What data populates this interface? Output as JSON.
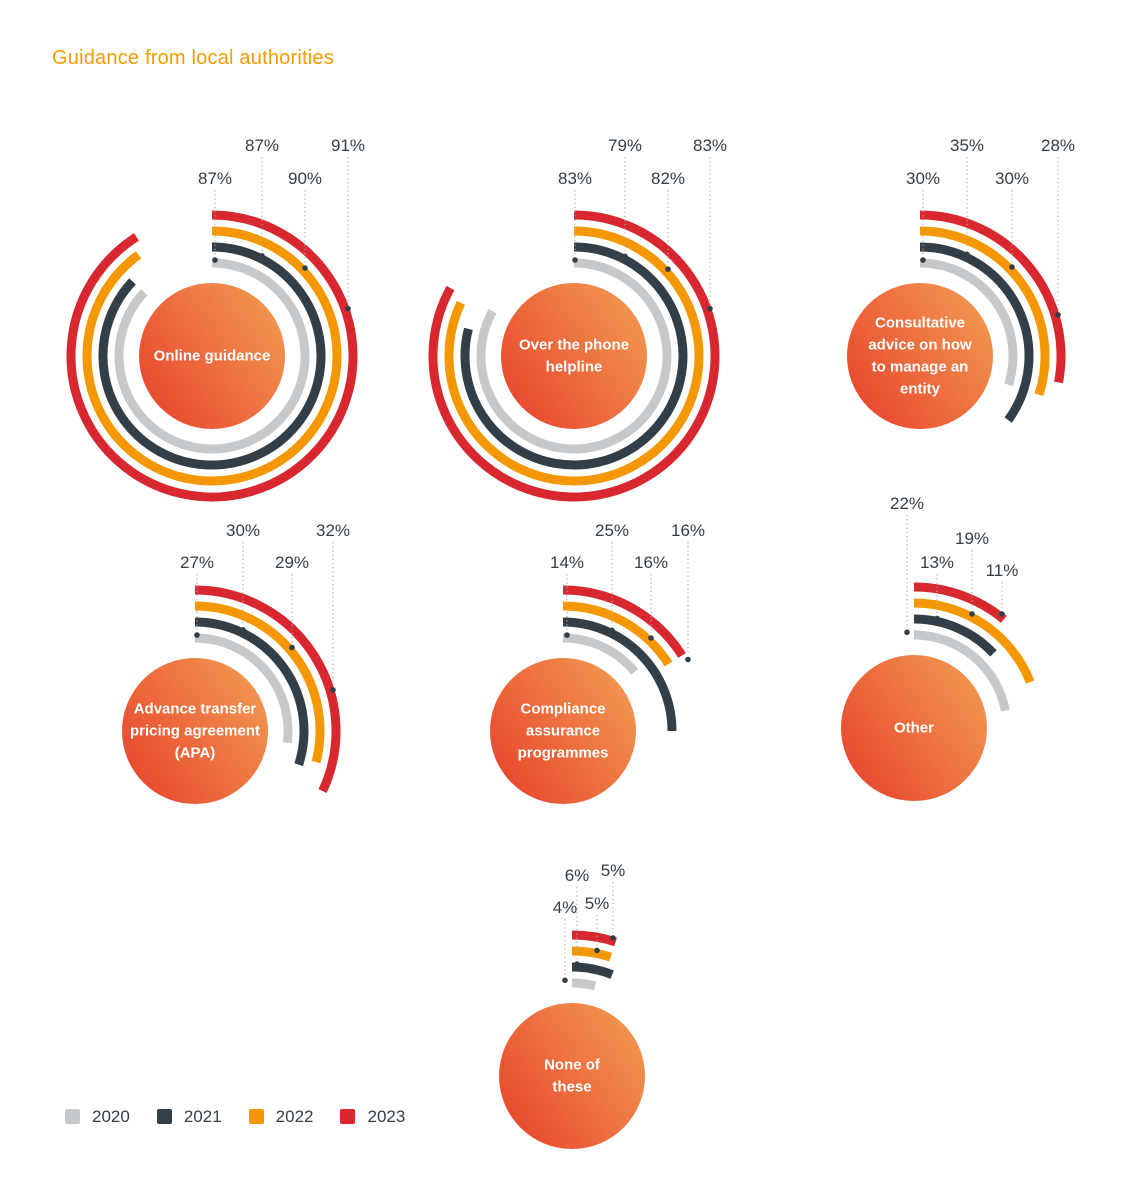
{
  "title": "Guidance from local authorities",
  "title_color": "#F59B00",
  "legend": {
    "items": [
      {
        "label": "2020",
        "color": "#C6C9CC"
      },
      {
        "label": "2021",
        "color": "#333F48"
      },
      {
        "label": "2022",
        "color": "#F49700"
      },
      {
        "label": "2023",
        "color": "#D9272F"
      }
    ]
  },
  "chart_data": {
    "type": "radial-bar",
    "title": "Guidance from local authorities",
    "unit": "%",
    "value_range": [
      0,
      100
    ],
    "start_angle_deg": 0,
    "sweep_direction": "clockwise",
    "ring_order_inner_to_outer": [
      "2020",
      "2021",
      "2022",
      "2023"
    ],
    "years": [
      "2020",
      "2021",
      "2022",
      "2023"
    ],
    "year_colors": {
      "2020": "#C6C9CC",
      "2021": "#333F48",
      "2022": "#F49700",
      "2023": "#D9272F"
    },
    "categories": [
      {
        "label": "Online guidance",
        "label_lines": [
          "Online guidance"
        ],
        "values": [
          87,
          87,
          90,
          91
        ]
      },
      {
        "label": "Over the phone helpline",
        "label_lines": [
          "Over the phone",
          "helpline"
        ],
        "values": [
          83,
          79,
          82,
          83
        ]
      },
      {
        "label": "Consultative advice on how to manage an entity",
        "label_lines": [
          "Consultative",
          "advice on how",
          "to manage an",
          "entity"
        ],
        "values": [
          30,
          35,
          30,
          28
        ]
      },
      {
        "label": "Advance transfer pricing agreement (APA)",
        "label_lines": [
          "Advance transfer",
          "pricing agreement",
          "(APA)"
        ],
        "values": [
          27,
          30,
          29,
          32
        ]
      },
      {
        "label": "Compliance assurance programmes",
        "label_lines": [
          "Compliance",
          "assurance",
          "programmes"
        ],
        "values": [
          14,
          25,
          16,
          16
        ]
      },
      {
        "label": "Other",
        "label_lines": [
          "Other"
        ],
        "values": [
          22,
          13,
          19,
          11
        ]
      },
      {
        "label": "None of these",
        "label_lines": [
          "None of",
          "these"
        ],
        "values": [
          4,
          6,
          5,
          5
        ]
      }
    ]
  },
  "styles": {
    "background": "#FFFFFF",
    "value_label_color": "#333F48",
    "marker_color": "#333F48",
    "leader_line_color": "#A6AAAE",
    "circle_gradient_from": "#E8442C",
    "circle_gradient_to": "#F29A52",
    "circle_text_color": "#FFFFFF"
  }
}
